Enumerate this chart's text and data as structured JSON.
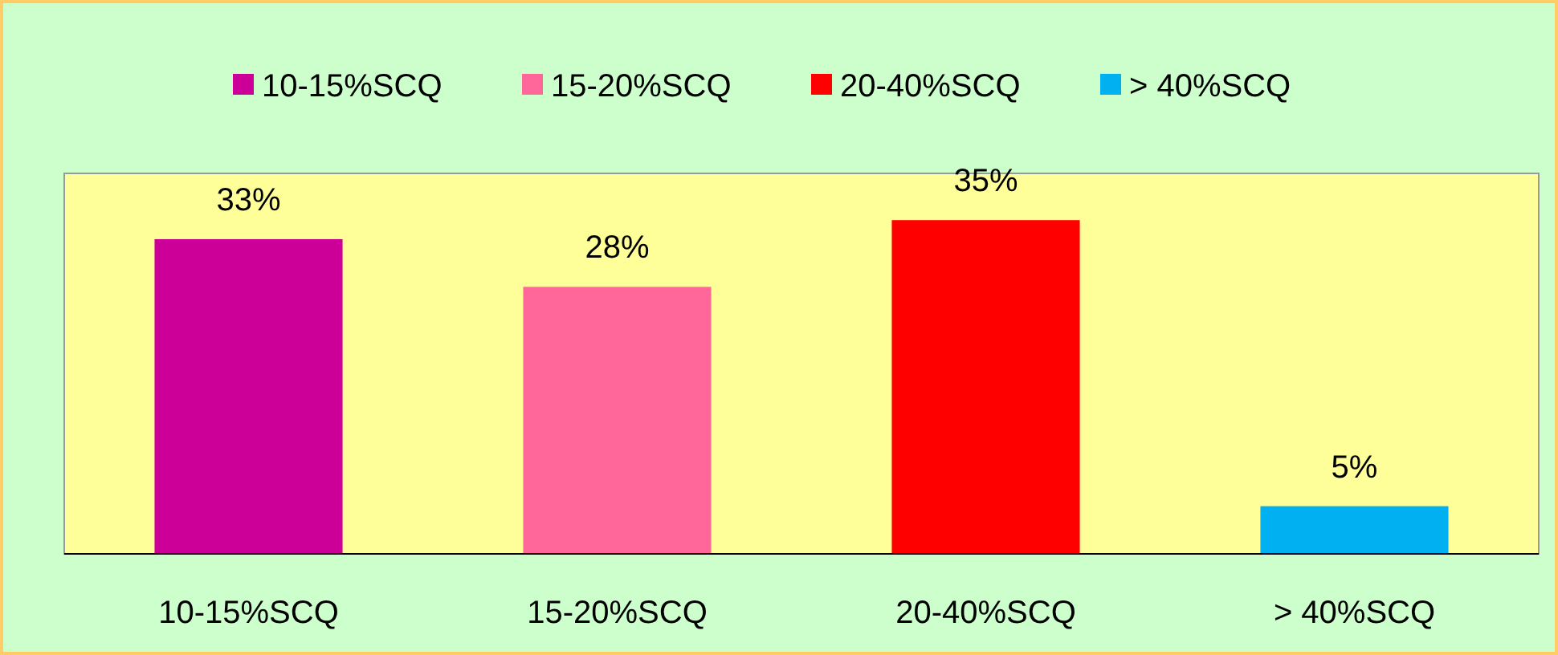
{
  "chart_data": {
    "type": "bar",
    "categories": [
      "10-15%SCQ",
      "15-20%SCQ",
      "20-40%SCQ",
      "> 40%SCQ"
    ],
    "series": [
      {
        "name": "10-15%SCQ",
        "color": "#cc0099",
        "values": [
          33,
          null,
          null,
          null
        ],
        "value_labels": [
          "33%",
          null,
          null,
          null
        ]
      },
      {
        "name": "15-20%SCQ",
        "color": "#ff6699",
        "values": [
          null,
          28,
          null,
          null
        ],
        "value_labels": [
          null,
          "28%",
          null,
          null
        ]
      },
      {
        "name": "20-40%SCQ",
        "color": "#ff0000",
        "values": [
          null,
          null,
          35,
          null
        ],
        "value_labels": [
          null,
          null,
          "35%",
          null
        ]
      },
      {
        "name": "> 40%SCQ",
        "color": "#00b0f0",
        "values": [
          null,
          null,
          null,
          5
        ],
        "value_labels": [
          null,
          null,
          null,
          "5%"
        ]
      }
    ],
    "stacked": true,
    "legend": "top"
  }
}
